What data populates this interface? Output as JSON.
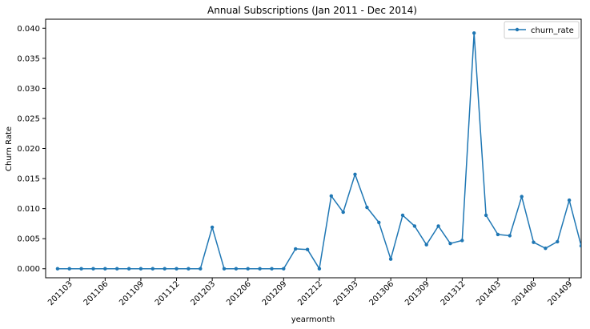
{
  "chart_data": {
    "type": "line",
    "title": "Annual Subscriptions (Jan 2011 - Dec 2014)",
    "xlabel": "yearmonth",
    "ylabel": "Churn Rate",
    "xlim": [
      201101,
      201410
    ],
    "ylim": [
      -0.0015,
      0.0415
    ],
    "grid": false,
    "legend": "top-right",
    "x_ticks": [
      "201103",
      "201106",
      "201109",
      "201112",
      "201203",
      "201206",
      "201209",
      "201212",
      "201303",
      "201306",
      "201309",
      "201312",
      "201403",
      "201406",
      "201409"
    ],
    "y_ticks": [
      "0.000",
      "0.005",
      "0.010",
      "0.015",
      "0.020",
      "0.025",
      "0.030",
      "0.035",
      "0.040"
    ],
    "series": [
      {
        "name": "churn_rate",
        "color": "#1f77b4",
        "marker": "circle",
        "x": [
          "201102",
          "201103",
          "201104",
          "201105",
          "201106",
          "201107",
          "201108",
          "201109",
          "201110",
          "201111",
          "201112",
          "201201",
          "201202",
          "201203",
          "201204",
          "201205",
          "201206",
          "201207",
          "201208",
          "201209",
          "201210",
          "201211",
          "201212",
          "201301",
          "201302",
          "201303",
          "201304",
          "201305",
          "201306",
          "201307",
          "201308",
          "201309",
          "201310",
          "201311",
          "201312",
          "201401",
          "201402",
          "201403",
          "201404",
          "201405",
          "201406",
          "201407",
          "201408",
          "201409",
          "201410",
          "201411"
        ],
        "values": [
          0.0,
          0.0,
          0.0,
          0.0,
          0.0,
          0.0,
          0.0,
          0.0,
          0.0,
          0.0,
          0.0,
          0.0,
          0.0,
          0.0069,
          0.0,
          0.0,
          0.0,
          0.0,
          0.0,
          0.0,
          0.0033,
          0.0032,
          0.0,
          0.0121,
          0.0094,
          0.0157,
          0.0102,
          0.0077,
          0.0016,
          0.0089,
          0.0071,
          0.004,
          0.0071,
          0.0042,
          0.0047,
          0.0392,
          0.0089,
          0.0057,
          0.0055,
          0.012,
          0.0044,
          0.0034,
          0.0045,
          0.0114,
          0.0038,
          0.004
        ]
      }
    ]
  }
}
